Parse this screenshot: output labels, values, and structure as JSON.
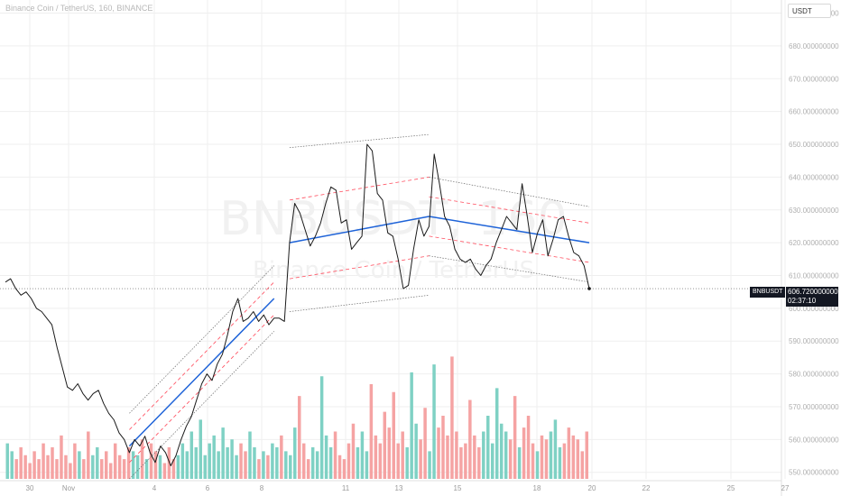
{
  "header": {
    "title": "Binance Coin / TetherUS, 160, BINANCE",
    "currency": "USDT"
  },
  "watermark": {
    "symbol": "BNBUSDT, 160",
    "name": "Binance Coin / TetherUS"
  },
  "last_price": {
    "symbol": "BNBUSDT",
    "price": "606.720000000",
    "countdown": "02:37:10"
  },
  "colors": {
    "price_line": "#1a1a1a",
    "trend_line": "#1e63d8",
    "channel_dashed": "#ff4d5e",
    "channel_dotted": "#6b6b6b",
    "volume_up": "#7fd1c4",
    "volume_down": "#f5a3a3",
    "grid": "#efefef"
  },
  "chart_data": {
    "type": "line",
    "title": "Binance Coin / TetherUS, 160, BINANCE",
    "xlabel": "",
    "ylabel": "",
    "ylim": [
      548,
      694
    ],
    "y_ticks": [
      "550.000000000",
      "560.000000000",
      "570.000000000",
      "580.000000000",
      "590.000000000",
      "600.000000000",
      "610.000000000",
      "620.000000000",
      "630.000000000",
      "640.000000000",
      "650.000000000",
      "660.000000000",
      "670.000000000",
      "680.000000000",
      "690.000000000"
    ],
    "x_ticks": [
      "30",
      "Nov",
      "4",
      "6",
      "8",
      "11",
      "13",
      "15",
      "18",
      "20",
      "22",
      "25",
      "27"
    ],
    "grid": true,
    "series": [
      {
        "role": "price",
        "points": [
          [
            0,
            608
          ],
          [
            2,
            609
          ],
          [
            4,
            606
          ],
          [
            6,
            604
          ],
          [
            8,
            605
          ],
          [
            10,
            603
          ],
          [
            12,
            600
          ],
          [
            14,
            599
          ],
          [
            16,
            597
          ],
          [
            18,
            595
          ],
          [
            20,
            588
          ],
          [
            22,
            582
          ],
          [
            24,
            576
          ],
          [
            26,
            575
          ],
          [
            28,
            577
          ],
          [
            30,
            574
          ],
          [
            32,
            572
          ],
          [
            34,
            574
          ],
          [
            36,
            575
          ],
          [
            38,
            571
          ],
          [
            40,
            568
          ],
          [
            42,
            566
          ],
          [
            44,
            562
          ],
          [
            46,
            560
          ],
          [
            48,
            556
          ],
          [
            50,
            560
          ],
          [
            52,
            558
          ],
          [
            54,
            561
          ],
          [
            56,
            556
          ],
          [
            58,
            553
          ],
          [
            60,
            558
          ],
          [
            62,
            556
          ],
          [
            64,
            552
          ],
          [
            66,
            555
          ],
          [
            68,
            560
          ],
          [
            70,
            564
          ],
          [
            72,
            567
          ],
          [
            74,
            572
          ],
          [
            76,
            577
          ],
          [
            78,
            580
          ],
          [
            80,
            578
          ],
          [
            82,
            583
          ],
          [
            84,
            586
          ],
          [
            86,
            592
          ],
          [
            88,
            599
          ],
          [
            90,
            603
          ],
          [
            92,
            596
          ],
          [
            94,
            597
          ],
          [
            96,
            599
          ],
          [
            98,
            596
          ],
          [
            100,
            598
          ],
          [
            102,
            595
          ],
          [
            104,
            597
          ],
          [
            106,
            597
          ],
          [
            108,
            596
          ],
          [
            110,
            620
          ],
          [
            112,
            632
          ],
          [
            114,
            629
          ],
          [
            116,
            624
          ],
          [
            118,
            619
          ],
          [
            120,
            622
          ],
          [
            122,
            626
          ],
          [
            124,
            632
          ],
          [
            126,
            637
          ],
          [
            128,
            636
          ],
          [
            130,
            626
          ],
          [
            132,
            627
          ],
          [
            134,
            618
          ],
          [
            136,
            620
          ],
          [
            138,
            622
          ],
          [
            140,
            650
          ],
          [
            142,
            648
          ],
          [
            144,
            635
          ],
          [
            146,
            633
          ],
          [
            148,
            623
          ],
          [
            150,
            622
          ],
          [
            152,
            615
          ],
          [
            154,
            606
          ],
          [
            156,
            607
          ],
          [
            158,
            618
          ],
          [
            160,
            627
          ],
          [
            162,
            622
          ],
          [
            164,
            625
          ],
          [
            166,
            647
          ],
          [
            168,
            638
          ],
          [
            170,
            628
          ],
          [
            172,
            625
          ],
          [
            174,
            618
          ],
          [
            176,
            615
          ],
          [
            178,
            614
          ],
          [
            180,
            615
          ],
          [
            182,
            612
          ],
          [
            184,
            610
          ],
          [
            186,
            613
          ],
          [
            188,
            615
          ],
          [
            190,
            620
          ],
          [
            192,
            624
          ],
          [
            194,
            628
          ],
          [
            196,
            626
          ],
          [
            198,
            624
          ],
          [
            200,
            638
          ],
          [
            202,
            628
          ],
          [
            204,
            617
          ],
          [
            206,
            623
          ],
          [
            208,
            627
          ],
          [
            210,
            616
          ],
          [
            212,
            621
          ],
          [
            214,
            627
          ],
          [
            216,
            628
          ],
          [
            218,
            622
          ],
          [
            220,
            617
          ],
          [
            222,
            616
          ],
          [
            224,
            613
          ],
          [
            226,
            606
          ]
        ]
      },
      {
        "role": "trend-upper-left",
        "points": [
          [
            48,
            558
          ],
          [
            104,
            603
          ]
        ]
      },
      {
        "role": "trend-upper-main",
        "points": [
          [
            110,
            620
          ],
          [
            164,
            628
          ],
          [
            226,
            620
          ]
        ]
      }
    ],
    "volume_series": {
      "name": "Volume",
      "up_color": "#7fd1c4",
      "down_color": "#f5a3a3",
      "values": [
        9,
        7,
        5,
        8,
        6,
        4,
        7,
        5,
        9,
        6,
        8,
        5,
        11,
        6,
        4,
        9,
        7,
        5,
        12,
        6,
        8,
        5,
        7,
        4,
        9,
        6,
        5,
        8,
        7,
        6,
        10,
        5,
        9,
        7,
        6,
        4,
        8,
        5,
        6,
        9,
        7,
        12,
        8,
        15,
        6,
        9,
        11,
        7,
        13,
        8,
        10,
        6,
        9,
        7,
        12,
        8,
        5,
        7,
        6,
        9,
        8,
        11,
        7,
        6,
        13,
        21,
        9,
        5,
        8,
        7,
        26,
        11,
        8,
        12,
        6,
        5,
        9,
        14,
        8,
        12,
        7,
        24,
        11,
        9,
        17,
        13,
        22,
        9,
        12,
        8,
        27,
        14,
        10,
        18,
        7,
        29,
        13,
        16,
        11,
        31,
        12,
        8,
        9,
        20,
        11,
        8,
        12,
        16,
        9,
        23,
        14,
        12,
        10,
        21,
        8,
        13,
        16,
        9,
        7,
        11,
        10,
        12,
        15,
        8,
        9,
        13,
        11,
        10,
        7,
        12
      ]
    }
  }
}
